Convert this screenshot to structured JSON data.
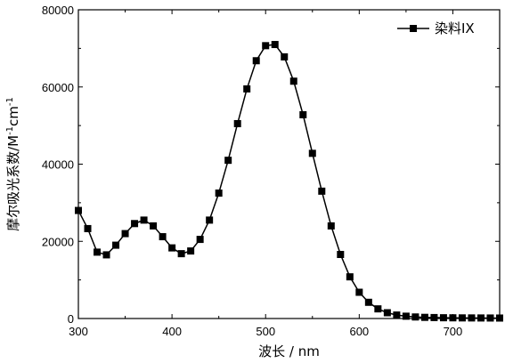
{
  "chart_data": {
    "type": "line",
    "xlabel": "波长 / nm",
    "ylabel": "摩尔吸光系数/M",
    "ylabel_sup1": "-1",
    "ylabel_mid": "cm",
    "ylabel_sup2": "-1",
    "xlim": [
      300,
      750
    ],
    "ylim": [
      0,
      80000
    ],
    "xticks": [
      300,
      400,
      500,
      600,
      700
    ],
    "yticks": [
      0,
      20000,
      40000,
      60000,
      80000
    ],
    "grid": false,
    "legend_position": "top-right",
    "series": [
      {
        "name": "染料IX",
        "color": "#000000",
        "marker": "square",
        "x": [
          300,
          310,
          320,
          330,
          340,
          350,
          360,
          370,
          380,
          390,
          400,
          410,
          420,
          430,
          440,
          450,
          460,
          470,
          480,
          490,
          500,
          510,
          520,
          530,
          540,
          550,
          560,
          570,
          580,
          590,
          600,
          610,
          620,
          630,
          640,
          650,
          660,
          670,
          680,
          690,
          700,
          710,
          720,
          730,
          740,
          750
        ],
        "y": [
          28000,
          23300,
          17200,
          16500,
          19000,
          22000,
          24600,
          25500,
          24000,
          21200,
          18300,
          16800,
          17500,
          20500,
          25500,
          32500,
          41000,
          50500,
          59500,
          66800,
          70700,
          71000,
          67800,
          61500,
          52800,
          42800,
          33000,
          24000,
          16600,
          10800,
          6800,
          4200,
          2500,
          1500,
          900,
          600,
          400,
          300,
          250,
          200,
          180,
          160,
          150,
          140,
          130,
          120
        ]
      }
    ]
  }
}
